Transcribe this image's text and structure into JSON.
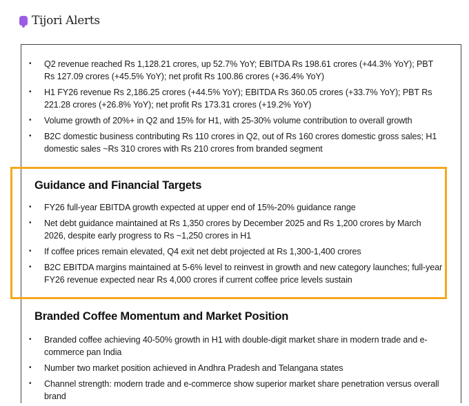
{
  "header": {
    "app_title": "Tijori Alerts",
    "logo_icon": "bell-icon",
    "logo_color": "#9b5de5"
  },
  "highlight_color": "#f5a81c",
  "sections": [
    {
      "heading": "",
      "items": [
        "Q2 revenue reached Rs 1,128.21 crores, up 52.7% YoY; EBITDA Rs 198.61 crores (+44.3% YoY); PBT Rs 127.09 crores (+45.5% YoY); net profit Rs 100.86 crores (+36.4% YoY)",
        "H1 FY26 revenue Rs 2,186.25 crores (+44.5% YoY); EBITDA Rs 360.05 crores (+33.7% YoY); PBT Rs 221.28 crores (+26.8% YoY); net profit Rs 173.31 crores (+19.2% YoY)",
        "Volume growth of 20%+ in Q2 and 15% for H1, with 25-30% volume contribution to overall growth",
        "B2C domestic business contributing Rs 110 crores in Q2, out of Rs 160 crores domestic gross sales; H1 domestic sales ~Rs 310 crores with Rs 210 crores from branded segment"
      ]
    },
    {
      "heading": "Guidance and Financial Targets",
      "items": [
        "FY26 full-year EBITDA growth expected at upper end of 15%-20% guidance range",
        "Net debt guidance maintained at Rs 1,350 crores by December 2025 and Rs 1,200 crores by March 2026, despite early progress to Rs ~1,250 crores in H1",
        "If coffee prices remain elevated, Q4 exit net debt projected at Rs 1,300-1,400 crores",
        "B2C EBITDA margins maintained at 5-6% level to reinvest in growth and new category launches; full-year FY26 revenue expected near Rs 4,000 crores if current coffee price levels sustain"
      ]
    },
    {
      "heading": "Branded Coffee Momentum and Market Position",
      "items": [
        "Branded coffee achieving 40-50% growth in H1 with double-digit market share in modern trade and e-commerce pan India",
        "Number two market position achieved in Andhra Pradesh and Telangana states",
        "Channel strength: modern trade and e-commerce show superior market share penetration versus overall brand"
      ]
    }
  ]
}
